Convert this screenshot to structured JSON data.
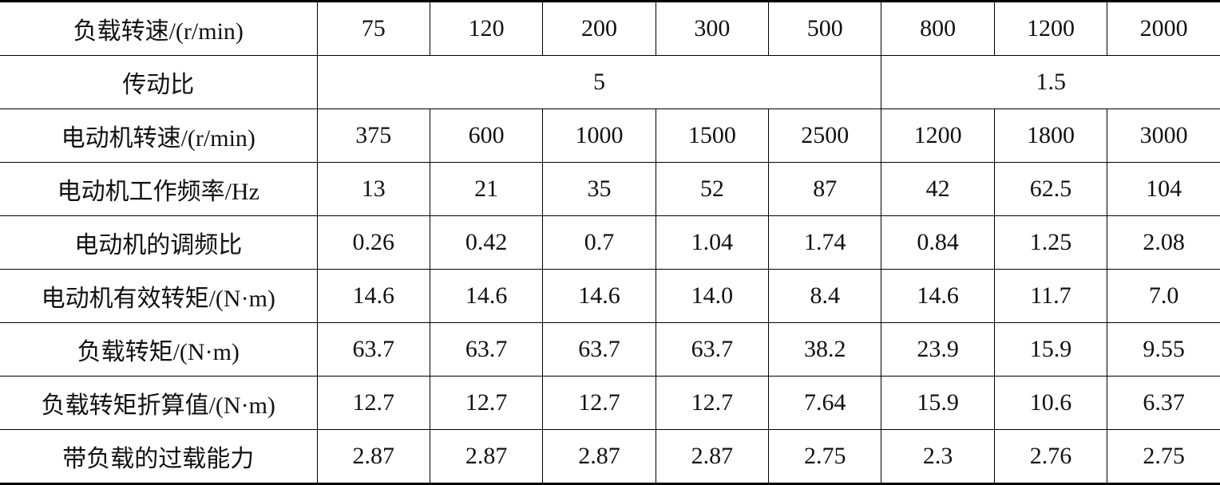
{
  "table": {
    "rows": [
      [
        "负载转速/(r/min)",
        "75",
        "120",
        "200",
        "300",
        "500",
        "800",
        "1200",
        "2000"
      ],
      [
        "传动比",
        "5",
        "1.5"
      ],
      [
        "电动机转速/(r/min)",
        "375",
        "600",
        "1000",
        "1500",
        "2500",
        "1200",
        "1800",
        "3000"
      ],
      [
        "电动机工作频率/Hz",
        "13",
        "21",
        "35",
        "52",
        "87",
        "42",
        "62.5",
        "104"
      ],
      [
        "电动机的调频比",
        "0.26",
        "0.42",
        "0.7",
        "1.04",
        "1.74",
        "0.84",
        "1.25",
        "2.08"
      ],
      [
        "电动机有效转矩/(N·m)",
        "14.6",
        "14.6",
        "14.6",
        "14.0",
        "8.4",
        "14.6",
        "11.7",
        "7.0"
      ],
      [
        "负载转矩/(N·m)",
        "63.7",
        "63.7",
        "63.7",
        "63.7",
        "38.2",
        "23.9",
        "15.9",
        "9.55"
      ],
      [
        "负载转矩折算值/(N·m)",
        "12.7",
        "12.7",
        "12.7",
        "12.7",
        "7.64",
        "15.9",
        "10.6",
        "6.37"
      ],
      [
        "带负载的过载能力",
        "2.87",
        "2.87",
        "2.87",
        "2.87",
        "2.75",
        "2.3",
        "2.76",
        "2.75"
      ]
    ]
  }
}
